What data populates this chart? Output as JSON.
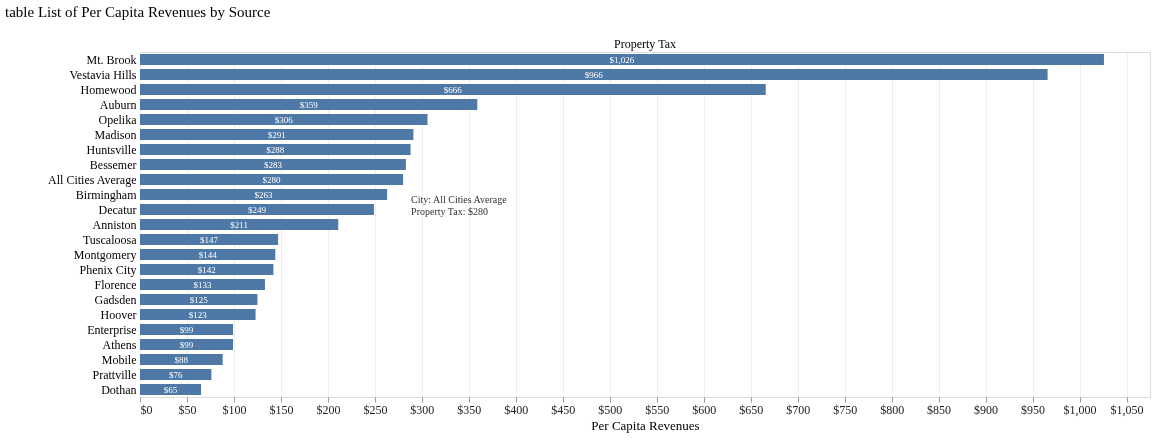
{
  "chart_data": {
    "type": "bar",
    "orientation": "horizontal",
    "title": "table List of Per Capita Revenues by Source",
    "subtitle": "Property Tax",
    "xlabel": "Per Capita Revenues",
    "categories": [
      "Mt. Brook",
      "Vestavia Hills",
      "Homewood",
      "Auburn",
      "Opelika",
      "Madison",
      "Huntsville",
      "Bessemer",
      "All Cities Average",
      "Birmingham",
      "Decatur",
      "Anniston",
      "Tuscaloosa",
      "Montgomery",
      "Phenix City",
      "Florence",
      "Gadsden",
      "Hoover",
      "Enterprise",
      "Athens",
      "Mobile",
      "Prattville",
      "Dothan"
    ],
    "values": [
      1026,
      966,
      666,
      359,
      306,
      291,
      288,
      283,
      280,
      263,
      249,
      211,
      147,
      144,
      142,
      133,
      125,
      123,
      99,
      99,
      88,
      76,
      65
    ],
    "value_labels": [
      "$1,026",
      "$966",
      "$666",
      "$359",
      "$306",
      "$291",
      "$288",
      "$283",
      "$280",
      "$263",
      "$249",
      "$211",
      "$147",
      "$144",
      "$142",
      "$133",
      "$125",
      "$123",
      "$99",
      "$99",
      "$88",
      "$76",
      "$65"
    ],
    "color": "#4e79a7",
    "xlim": [
      0,
      1075
    ],
    "xticks": [
      {
        "value": 0,
        "label": "$0"
      },
      {
        "value": 50,
        "label": "$50"
      },
      {
        "value": 100,
        "label": "$100"
      },
      {
        "value": 150,
        "label": "$150"
      },
      {
        "value": 200,
        "label": "$200"
      },
      {
        "value": 250,
        "label": "$250"
      },
      {
        "value": 300,
        "label": "$300"
      },
      {
        "value": 350,
        "label": "$350"
      },
      {
        "value": 400,
        "label": "$400"
      },
      {
        "value": 450,
        "label": "$450"
      },
      {
        "value": 500,
        "label": "$500"
      },
      {
        "value": 550,
        "label": "$550"
      },
      {
        "value": 600,
        "label": "$600"
      },
      {
        "value": 650,
        "label": "$650"
      },
      {
        "value": 700,
        "label": "$700"
      },
      {
        "value": 750,
        "label": "$750"
      },
      {
        "value": 800,
        "label": "$800"
      },
      {
        "value": 850,
        "label": "$850"
      },
      {
        "value": 900,
        "label": "$900"
      },
      {
        "value": 950,
        "label": "$950"
      },
      {
        "value": 1000,
        "label": "$1,000"
      },
      {
        "value": 1050,
        "label": "$1,050"
      }
    ],
    "grid": "x",
    "annotations": [
      {
        "text": "City: All Cities Average",
        "x": 280,
        "y": "All Cities Average"
      },
      {
        "text": "Property Tax: $280",
        "x": 280,
        "y": "All Cities Average"
      }
    ]
  }
}
